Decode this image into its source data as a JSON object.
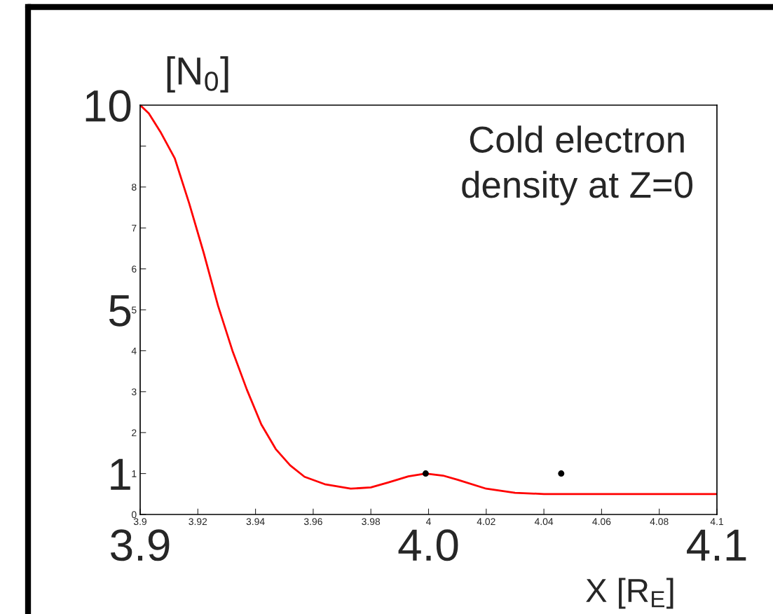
{
  "chart_data": {
    "type": "line",
    "xlabel": "X [R$_{E}$]",
    "ylabel": "[N$_{0}$]",
    "annotations": [
      "Cold electron\ndensity at Z=0"
    ],
    "series": [
      {
        "color": "#ff0000",
        "x": [
          3.9,
          3.903,
          3.907,
          3.912,
          3.917,
          3.922,
          3.927,
          3.932,
          3.937,
          3.942,
          3.947,
          3.952,
          3.957,
          3.964,
          3.973,
          3.98,
          3.986,
          3.993,
          3.999,
          4.005,
          4.01,
          4.02,
          4.03,
          4.04,
          4.1
        ],
        "values": [
          10,
          9.8,
          9.35,
          8.7,
          7.6,
          6.4,
          5.1,
          4.0,
          3.05,
          2.2,
          1.6,
          1.2,
          0.92,
          0.74,
          0.63,
          0.66,
          0.78,
          0.93,
          1.0,
          0.95,
          0.85,
          0.63,
          0.53,
          0.5,
          0.5
        ]
      },
      {
        "type": "scatter",
        "color": "#000000",
        "marker": "circle",
        "x": [
          3.999,
          4.046
        ],
        "values": [
          1,
          1
        ]
      }
    ],
    "xlim": [
      3.9,
      4.1
    ],
    "xticks": [
      {
        "value": 3.9,
        "label": "3.9"
      },
      {
        "value": 3.92,
        "label": "3.92"
      },
      {
        "value": 3.94,
        "label": "3.94"
      },
      {
        "value": 3.96,
        "label": "3.96"
      },
      {
        "value": 3.98,
        "label": "3.98"
      },
      {
        "value": 4.0,
        "label": "4"
      },
      {
        "value": 4.02,
        "label": "4.02"
      },
      {
        "value": 4.04,
        "label": "4.04"
      },
      {
        "value": 4.06,
        "label": "4.06"
      },
      {
        "value": 4.08,
        "label": "4.08"
      },
      {
        "value": 4.1,
        "label": "4.1"
      }
    ],
    "ylim": [
      0,
      10
    ],
    "yticks": [
      0,
      1,
      2,
      3,
      4,
      5,
      6,
      7,
      8,
      {
        "value": 9,
        "label": null
      }
    ],
    "x2lim": [
      3.9,
      4.1
    ],
    "x2ticks": [
      {
        "value": 3.9,
        "label": "3.9"
      },
      {
        "value": 4.0,
        "label": "4.0"
      },
      {
        "value": 4.1,
        "label": "4.1"
      }
    ],
    "y2lim": [
      0,
      10
    ],
    "y2ticks": [
      1,
      5,
      10
    ],
    "grid": false,
    "legend": false
  }
}
